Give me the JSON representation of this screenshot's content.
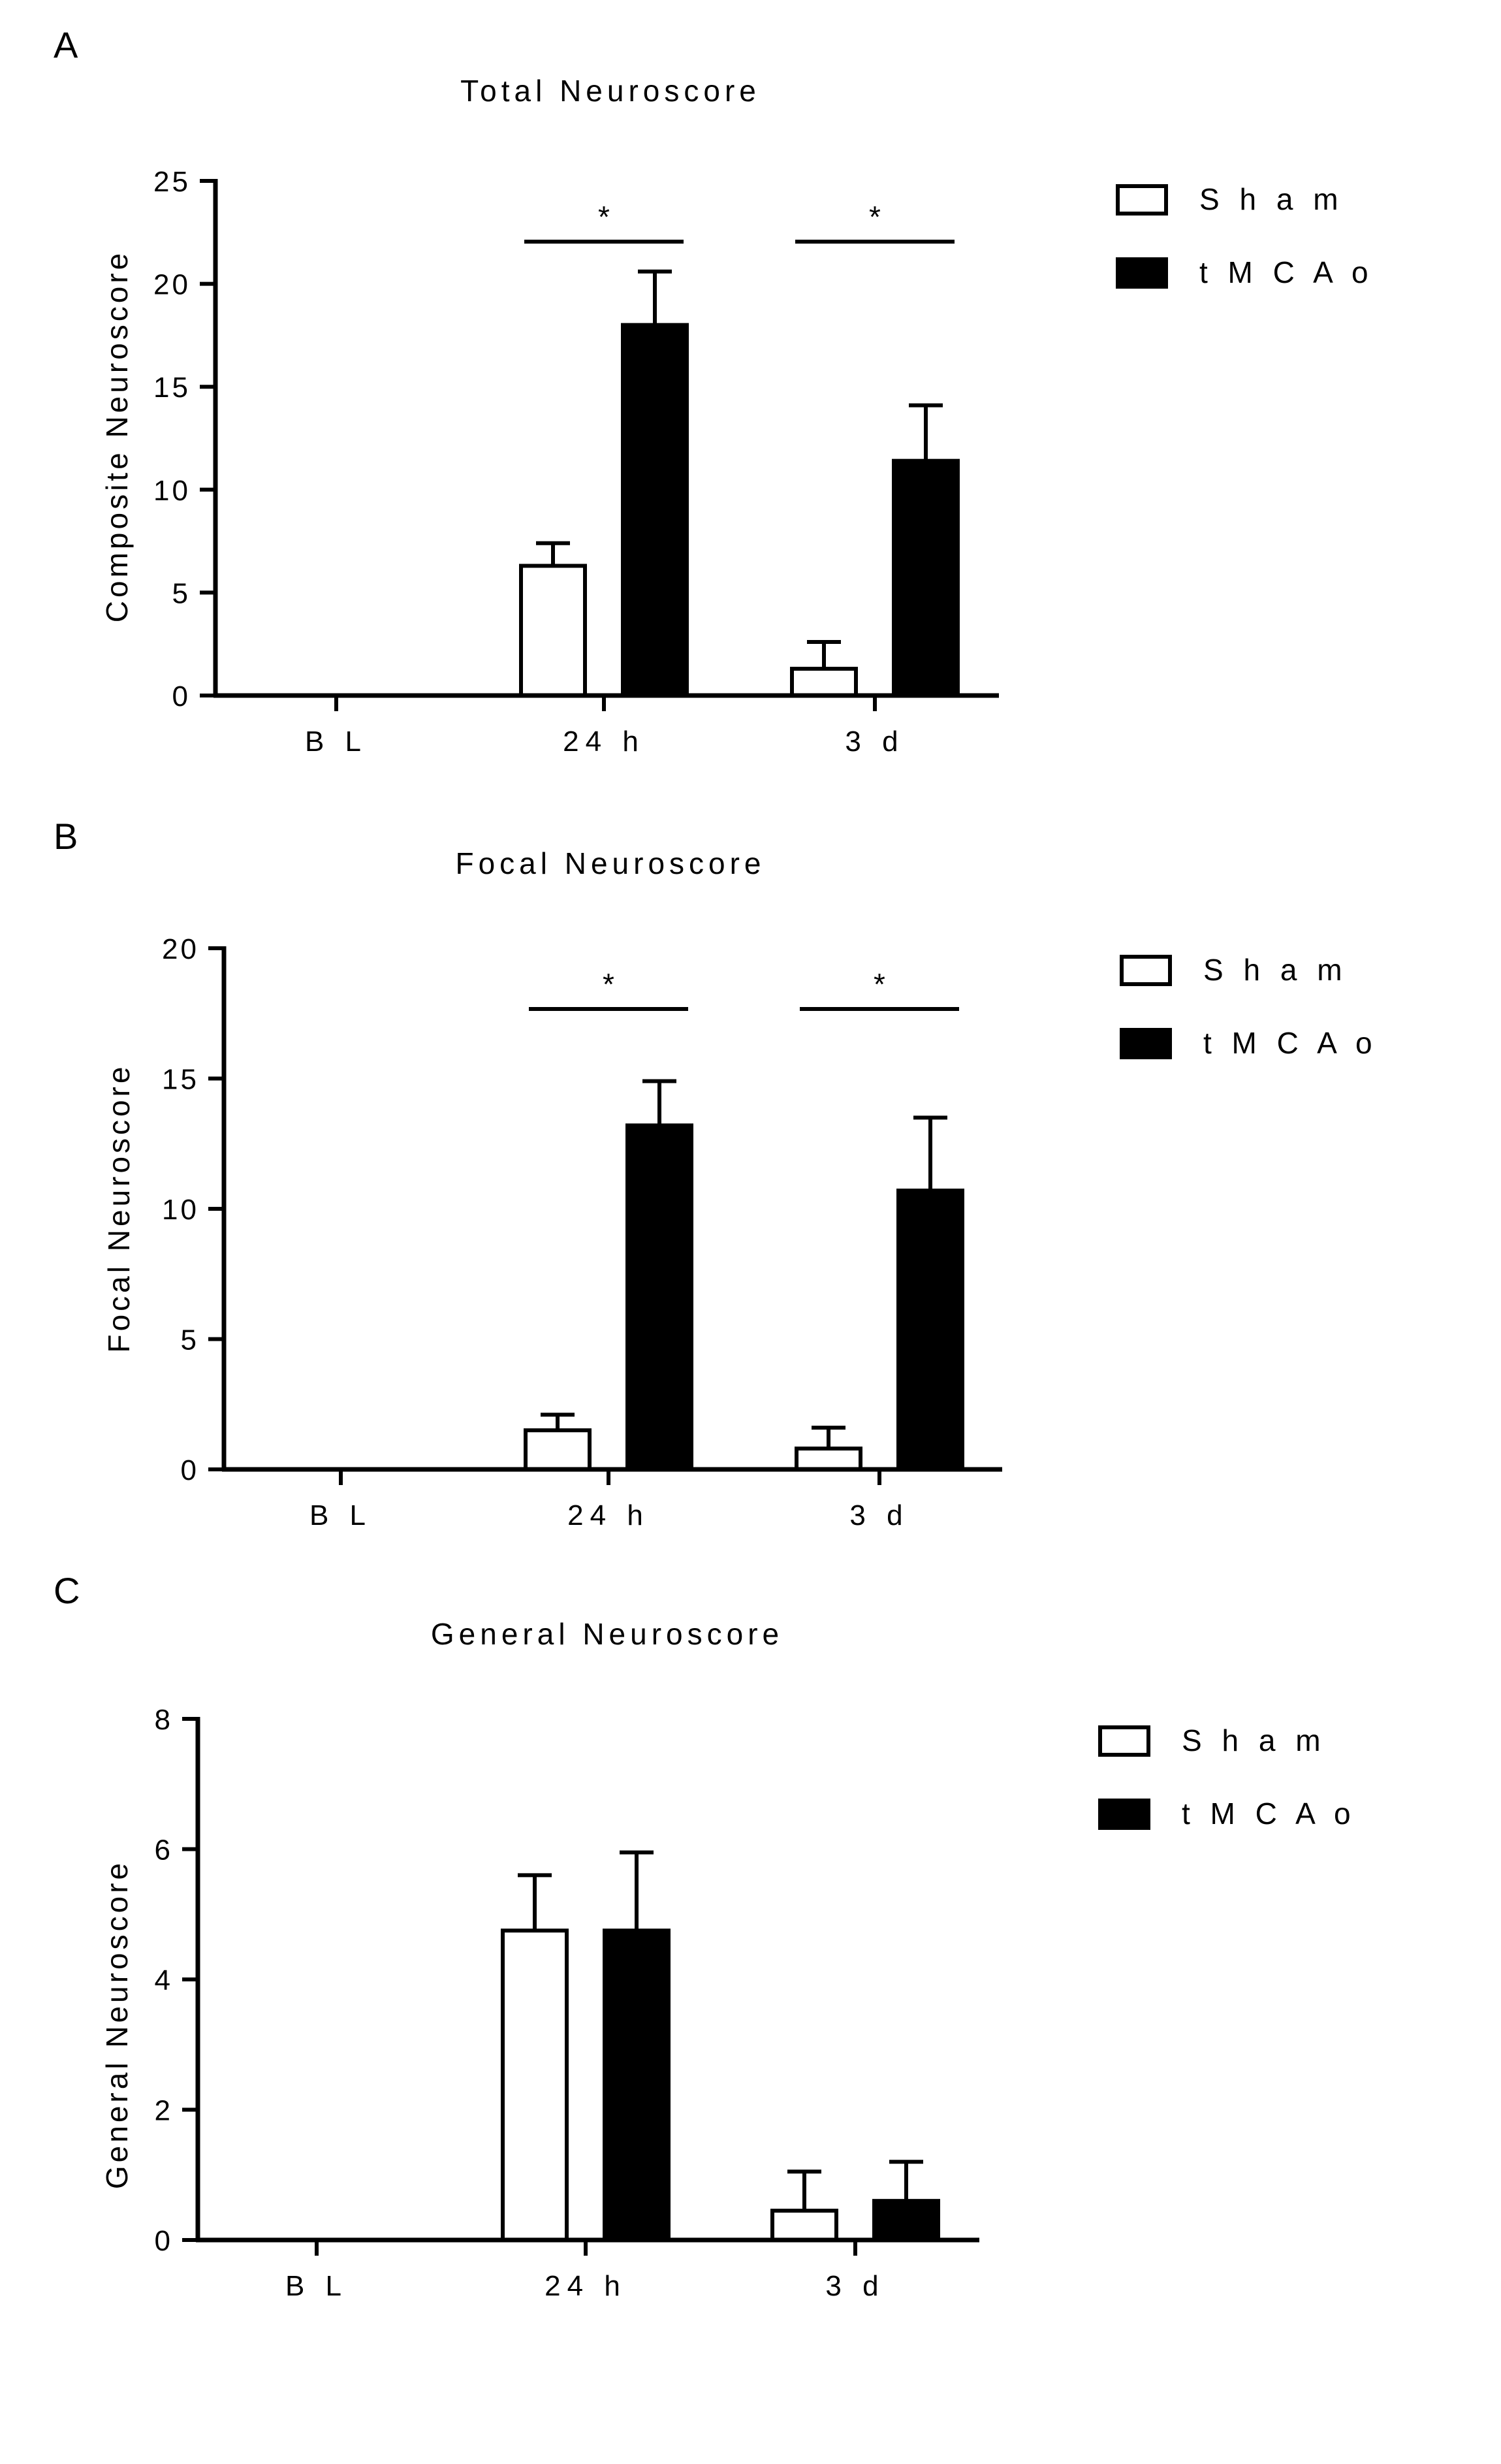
{
  "legend": {
    "series": [
      "Sham",
      "tMCAo"
    ],
    "display": [
      "S h a m",
      "t M C A o"
    ]
  },
  "colors": {
    "sham_fill": "#ffffff",
    "tmcao_fill": "#000000",
    "stroke": "#000000"
  },
  "chart_data": [
    {
      "panel": "A",
      "type": "bar",
      "title": "Total Neuroscore",
      "title_display": "Total Neuroscore",
      "ylabel": "Composite Neuroscore",
      "xlabel": "",
      "categories": [
        "BL",
        "24 h",
        "3 d"
      ],
      "categories_display": [
        "B L",
        "24  h",
        "3  d"
      ],
      "ylim": [
        0,
        25
      ],
      "yticks": [
        0,
        5,
        10,
        15,
        20,
        25
      ],
      "series": [
        {
          "name": "Sham",
          "values": [
            0,
            6.3,
            1.3
          ],
          "errors": [
            0,
            1.1,
            1.3
          ]
        },
        {
          "name": "tMCAo",
          "values": [
            0,
            18.0,
            11.4
          ],
          "errors": [
            0,
            2.6,
            2.7
          ]
        }
      ],
      "significance": [
        {
          "category": "24 h",
          "label": "*"
        },
        {
          "category": "3 d",
          "label": "*"
        }
      ],
      "legend_position": "right"
    },
    {
      "panel": "B",
      "type": "bar",
      "title": "Focal Neuroscore",
      "title_display": "Focal Neuroscore",
      "ylabel": "Focal Neuroscore",
      "xlabel": "",
      "categories": [
        "BL",
        "24 h",
        "3 d"
      ],
      "categories_display": [
        "B L",
        "24  h",
        "3  d"
      ],
      "ylim": [
        0,
        20
      ],
      "yticks": [
        0,
        5,
        10,
        15,
        20
      ],
      "series": [
        {
          "name": "Sham",
          "values": [
            0,
            1.5,
            0.8
          ],
          "errors": [
            0,
            0.6,
            0.8
          ]
        },
        {
          "name": "tMCAo",
          "values": [
            0,
            13.2,
            10.7
          ],
          "errors": [
            0,
            1.7,
            2.8
          ]
        }
      ],
      "significance": [
        {
          "category": "24 h",
          "label": "*"
        },
        {
          "category": "3 d",
          "label": "*"
        }
      ],
      "legend_position": "right"
    },
    {
      "panel": "C",
      "type": "bar",
      "title": "General Neuroscore",
      "title_display": "General Neuroscore",
      "ylabel": "General Neuroscore",
      "xlabel": "",
      "categories": [
        "BL",
        "24 h",
        "3 d"
      ],
      "categories_display": [
        "B L",
        "24  h",
        "3  d"
      ],
      "ylim": [
        0,
        8
      ],
      "yticks": [
        0,
        2,
        4,
        6,
        8
      ],
      "series": [
        {
          "name": "Sham",
          "values": [
            0,
            4.75,
            0.45
          ],
          "errors": [
            0,
            0.85,
            0.6
          ]
        },
        {
          "name": "tMCAo",
          "values": [
            0,
            4.75,
            0.6
          ],
          "errors": [
            0,
            1.2,
            0.6
          ]
        }
      ],
      "significance": [],
      "legend_position": "right"
    }
  ]
}
